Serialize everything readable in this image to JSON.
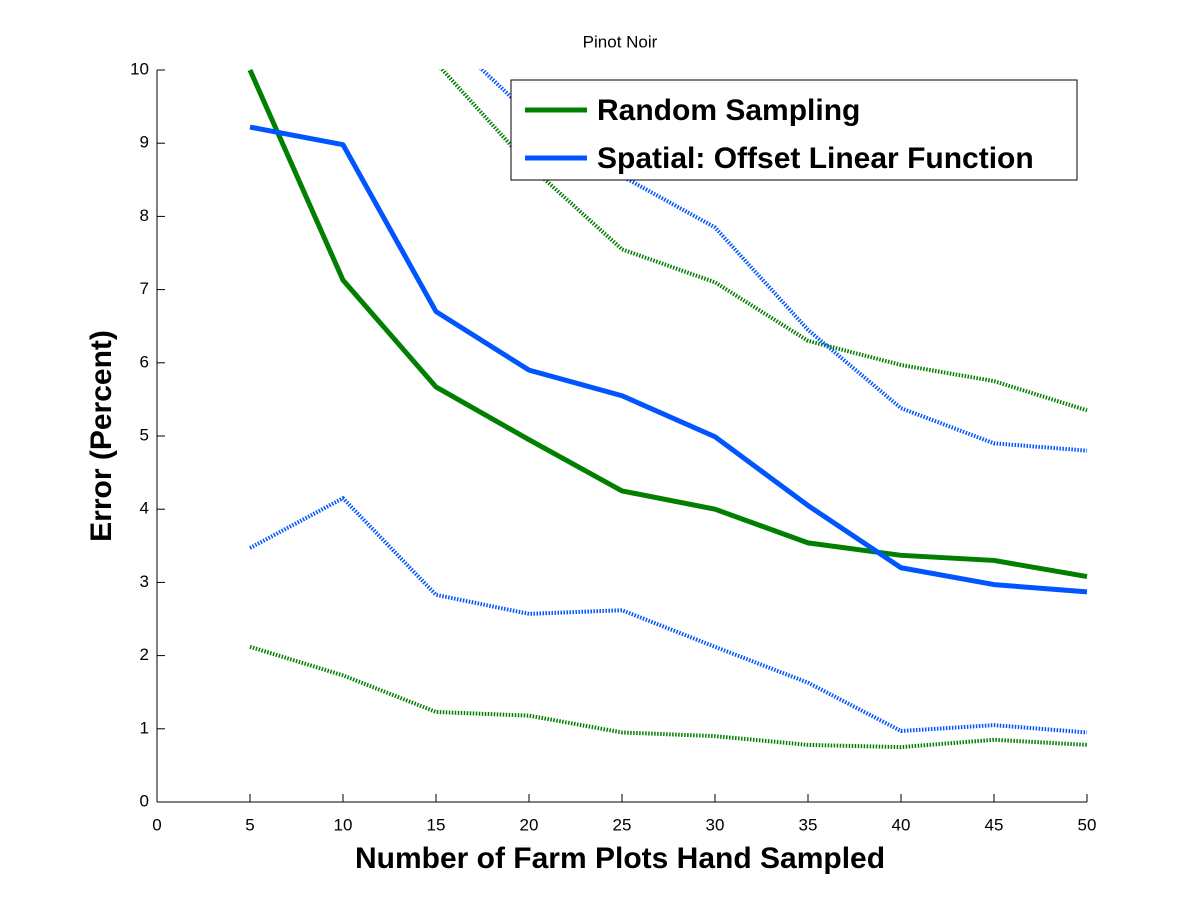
{
  "chart_data": {
    "type": "line",
    "title": "Pinot Noir",
    "x_label": "Number of Farm Plots Hand Sampled",
    "y_label": "Error (Percent)",
    "x": [
      5,
      10,
      15,
      20,
      25,
      30,
      35,
      40,
      45,
      50
    ],
    "series": [
      {
        "name": "Random Sampling",
        "color": "#007f00",
        "style": "solid",
        "values": [
          10,
          7.13,
          5.67,
          4.95,
          4.25,
          4.0,
          3.54,
          3.37,
          3.3,
          3.08
        ]
      },
      {
        "name": "Spatial: Offset Linear Function",
        "color": "#0055ff",
        "style": "solid",
        "values": [
          9.22,
          8.98,
          6.7,
          5.9,
          5.55,
          4.99,
          4.05,
          3.2,
          2.97,
          2.87
        ]
      },
      {
        "color": "#007f00",
        "style": "dotted",
        "values": [
          null,
          null,
          10.1,
          8.7,
          7.55,
          7.1,
          6.3,
          5.97,
          5.75,
          5.35
        ]
      },
      {
        "color": "#0055ff",
        "style": "dotted",
        "values": [
          null,
          null,
          10.6,
          9.4,
          8.55,
          7.85,
          6.45,
          5.38,
          4.9,
          4.8
        ]
      },
      {
        "color": "#0055ff",
        "style": "dotted",
        "values": [
          3.47,
          4.15,
          2.83,
          2.57,
          2.62,
          2.12,
          1.63,
          0.97,
          1.05,
          0.95
        ]
      },
      {
        "color": "#007f00",
        "style": "dotted",
        "values": [
          2.12,
          1.73,
          1.23,
          1.18,
          0.95,
          0.9,
          0.78,
          0.75,
          0.85,
          0.78
        ]
      }
    ],
    "xlim": [
      0,
      50
    ],
    "xticks": [
      0,
      5,
      10,
      15,
      20,
      25,
      30,
      35,
      40,
      45,
      50
    ],
    "ylim": [
      0,
      10
    ],
    "yticks": [
      0,
      1,
      2,
      3,
      4,
      5,
      6,
      7,
      8,
      9,
      10
    ],
    "grid": false,
    "legend": "upper right"
  }
}
